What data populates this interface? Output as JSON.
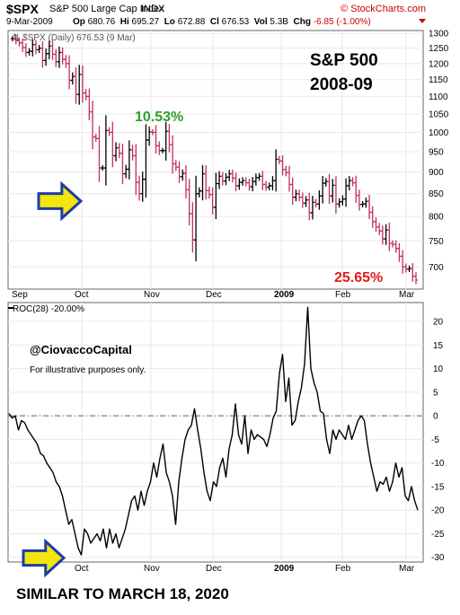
{
  "header": {
    "symbol": "$SPX",
    "name": "S&P 500 Large Cap Index",
    "exchange": "INDX",
    "source": "© StockCharts.com",
    "date": "9-Mar-2009",
    "open_label": "Op",
    "open": "680.76",
    "high_label": "Hi",
    "high": "695.27",
    "low_label": "Lo",
    "low": "672.88",
    "close_label": "Cl",
    "close": "676.53",
    "vol_label": "Vol",
    "vol": "5.3B",
    "chg_label": "Chg",
    "chg": "-6.85 (-1.00%)"
  },
  "annotations": {
    "title_line1": "S&P 500",
    "title_line2": "2008-09",
    "pct_up": "10.53%",
    "pct_down": "25.65%",
    "watermark": "@CiovaccoCapital",
    "disclaimer": "For illustrative purposes only.",
    "footer": "SIMILAR TO MARCH 18, 2020"
  },
  "colors": {
    "up_bar": "#000000",
    "down_bar": "#c0305a",
    "green": "#2ca02c",
    "red": "#e31a1c",
    "arrow_fill": "#f2e60c",
    "arrow_stroke": "#1e3ca8"
  },
  "chart_data": [
    {
      "type": "ohlc",
      "title": "$SPX (Daily) 676.53 (9 Mar)",
      "x_ticks": [
        "Sep",
        "Oct",
        "Nov",
        "Dec",
        "2009",
        "Feb",
        "Mar"
      ],
      "y_ticks": [
        700,
        750,
        800,
        850,
        900,
        950,
        1000,
        1050,
        1100,
        1150,
        1200,
        1250,
        1300
      ],
      "ylim": [
        660,
        1310
      ],
      "scale": "log",
      "grid": true,
      "closes": [
        1282,
        1275,
        1268,
        1252,
        1236,
        1240,
        1262,
        1245,
        1250,
        1210,
        1232,
        1257,
        1230,
        1206,
        1236,
        1214,
        1200,
        1148,
        1160,
        1106,
        1166,
        1110,
        1100,
        1056,
        988,
        984,
        910,
        910,
        1005,
        1000,
        940,
        960,
        946,
        896,
        907,
        955,
        940,
        876,
        850,
        883,
        980,
        1001,
        1000,
        965,
        953,
        953,
        1003,
        968,
        920,
        912,
        889,
        897,
        859,
        806,
        752,
        850,
        856,
        896,
        857,
        848,
        820,
        873,
        890,
        879,
        888,
        896,
        886,
        868,
        876,
        880,
        875,
        866,
        878,
        887,
        890,
        871,
        865,
        868,
        880,
        931,
        927,
        906,
        899,
        871,
        842,
        850,
        842,
        829,
        836,
        808,
        831,
        827,
        845,
        874,
        878,
        845,
        869,
        827,
        832,
        838,
        868,
        880,
        875,
        846,
        826,
        827,
        833,
        809,
        789,
        778,
        770,
        754,
        772,
        745,
        743,
        735,
        720,
        700,
        696,
        697,
        683,
        676
      ]
    },
    {
      "type": "line",
      "title": "ROC(28) -20.00%",
      "x_ticks": [
        "Oct",
        "Nov",
        "Dec",
        "2009",
        "Feb",
        "Mar"
      ],
      "y_ticks": [
        -30,
        -25,
        -20,
        -15,
        -10,
        -5,
        0,
        5,
        10,
        15,
        20
      ],
      "ylim": [
        -31,
        24
      ],
      "reference_line": 0,
      "values": [
        0.5,
        -0.5,
        0,
        -3,
        -1,
        -1.5,
        -3,
        -4,
        -5,
        -6,
        -8,
        -8.5,
        -10,
        -11,
        -12,
        -14,
        -15,
        -17,
        -20,
        -23,
        -22,
        -25,
        -28,
        -29.5,
        -24,
        -25,
        -27,
        -26,
        -25,
        -26.5,
        -24,
        -28,
        -24,
        -27,
        -25,
        -28,
        -26,
        -24,
        -21,
        -18,
        -17,
        -20,
        -16,
        -19,
        -16,
        -14,
        -10,
        -13,
        -9,
        -6,
        -12,
        -14,
        -17,
        -23,
        -14,
        -9,
        -5,
        -3,
        -2,
        1.5,
        -3,
        -7,
        -12,
        -16,
        -18,
        -14,
        -15,
        -11,
        -9,
        -13,
        -7,
        -4,
        2.5,
        -4,
        -6,
        0,
        -8,
        -3,
        -5,
        -4,
        -4.5,
        -5,
        -6.5,
        -4,
        -0.5,
        1,
        9,
        13,
        3,
        8,
        -2,
        -1,
        3,
        6,
        11,
        23,
        10,
        7,
        5,
        1,
        0.5,
        -5,
        -8,
        -3,
        -5,
        -3,
        -4,
        -5,
        -2,
        -5,
        -3,
        -1,
        0,
        -1,
        -6,
        -10,
        -13,
        -16,
        -14,
        -14.5,
        -13,
        -16,
        -14,
        -10,
        -13,
        -11,
        -17,
        -18,
        -15,
        -18,
        -20
      ]
    }
  ]
}
